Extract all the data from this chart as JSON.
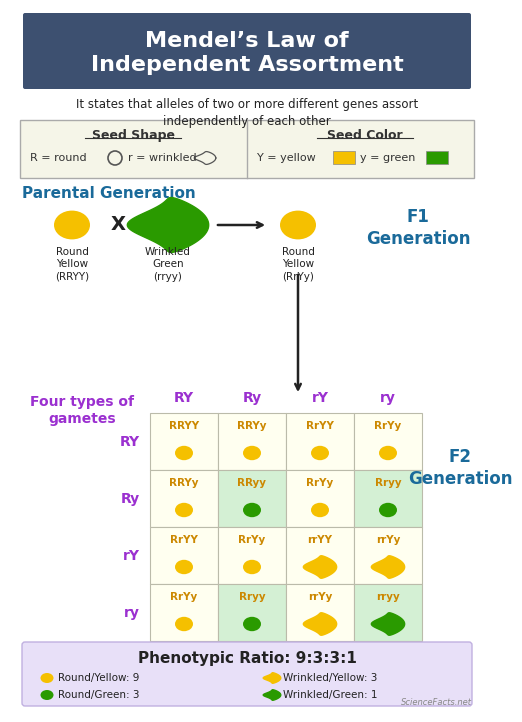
{
  "title": "Mendel’s Law of\nIndependent Assortment",
  "title_bg": "#3d5070",
  "subtitle": "It states that alleles of two or more different genes assort\nindependently of each other",
  "bg_color": "#ffffff",
  "header_text_color": "#ffffff",
  "parental_label": "Parental Generation",
  "parental_label_color": "#1a6a9a",
  "f1_label": "F1\nGeneration",
  "f1_color": "#1a6a9a",
  "f2_label": "F2\nGeneration",
  "f2_color": "#1a6a9a",
  "gametes_label": "Four types of\ngametes",
  "gametes_color": "#9b30d0",
  "punnett_col_labels": [
    "RY",
    "Ry",
    "rY",
    "ry"
  ],
  "punnett_row_labels": [
    "RY",
    "Ry",
    "rY",
    "ry"
  ],
  "punnett_genotypes": [
    [
      "RRYY",
      "RRYy",
      "RrYY",
      "RrYy"
    ],
    [
      "RRYy",
      "RRyy",
      "RrYy",
      "Rryy"
    ],
    [
      "RrYY",
      "RrYy",
      "rrYY",
      "rrYy"
    ],
    [
      "RrYy",
      "Rryy",
      "rrYy",
      "rryy"
    ]
  ],
  "punnett_seed_colors": [
    [
      "#f5c000",
      "#f5c000",
      "#f5c000",
      "#f5c000"
    ],
    [
      "#f5c000",
      "#2a9a00",
      "#f5c000",
      "#2a9a00"
    ],
    [
      "#f5c000",
      "#f5c000",
      "#f5c000",
      "#f5c000"
    ],
    [
      "#f5c000",
      "#2a9a00",
      "#f5c000",
      "#2a9a00"
    ]
  ],
  "punnett_seed_shapes": [
    [
      "round",
      "round",
      "round",
      "round"
    ],
    [
      "round",
      "round",
      "round",
      "round"
    ],
    [
      "round",
      "round",
      "wrinkled",
      "wrinkled"
    ],
    [
      "round",
      "round",
      "wrinkled",
      "wrinkled"
    ]
  ],
  "punnett_bg_colors": [
    [
      "#fffff0",
      "#fffff0",
      "#fffff0",
      "#fffff0"
    ],
    [
      "#fffff0",
      "#d4f0d4",
      "#fffff0",
      "#d4f0d4"
    ],
    [
      "#fffff0",
      "#fffff0",
      "#fffff0",
      "#fffff0"
    ],
    [
      "#fffff0",
      "#d4f0d4",
      "#fffff0",
      "#d4f0d4"
    ]
  ],
  "ratio_title": "Phenotypic Ratio: 9:3:3:1",
  "legend_items": [
    {
      "color": "#f5c000",
      "shape": "round",
      "label": "Round/Yellow: 9"
    },
    {
      "color": "#f5c000",
      "shape": "wrinkled",
      "label": "Wrinkled/Yellow: 3"
    },
    {
      "color": "#2a9a00",
      "shape": "round",
      "label": "Round/Green: 3"
    },
    {
      "color": "#2a9a00",
      "shape": "wrinkled",
      "label": "Wrinkled/Green: 1"
    }
  ],
  "yellow_color": "#f5c000",
  "green_color": "#2a9a00",
  "purple_color": "#9b30d0",
  "legend_box_bg": "#e8e0f8",
  "watermark": "ScienceFacts.net"
}
